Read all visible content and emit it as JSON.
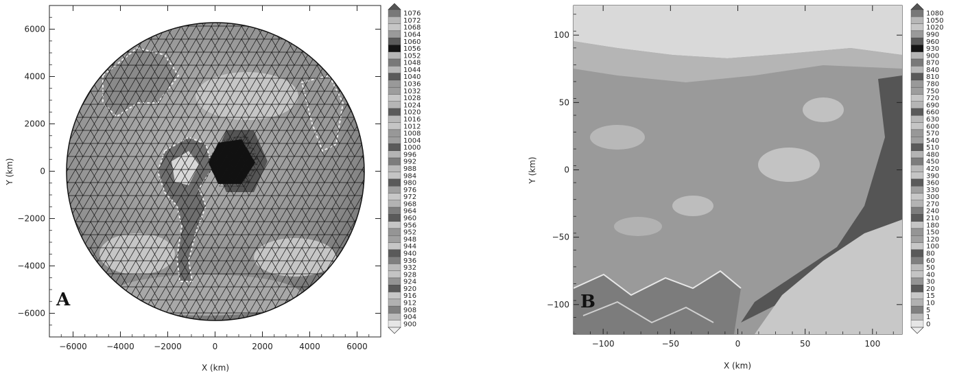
{
  "chart_data": [
    {
      "type": "heatmap",
      "panel_label": "A",
      "xlabel": "X (km)",
      "ylabel": "Y (km)",
      "xlim": [
        -7000,
        7000
      ],
      "ylim": [
        -7000,
        7000
      ],
      "x_ticks": [
        -6000,
        -4000,
        -2000,
        0,
        2000,
        4000,
        6000
      ],
      "y_ticks": [
        6000,
        4000,
        2000,
        0,
        -2000,
        -4000,
        -6000
      ],
      "colorbar_levels": [
        1076,
        1072,
        1068,
        1064,
        1060,
        1056,
        1052,
        1048,
        1044,
        1040,
        1036,
        1032,
        1028,
        1024,
        1020,
        1016,
        1012,
        1008,
        1004,
        1000,
        996,
        992,
        988,
        984,
        980,
        976,
        972,
        968,
        964,
        960,
        956,
        952,
        948,
        944,
        940,
        936,
        932,
        928,
        924,
        920,
        916,
        912,
        908,
        904,
        900
      ],
      "domain_radius": 6300
    },
    {
      "type": "heatmap",
      "panel_label": "B",
      "xlabel": "X (km)",
      "ylabel": "Y (km)",
      "xlim": [
        -122,
        122
      ],
      "ylim": [
        -122,
        122
      ],
      "x_ticks": [
        -100,
        -50,
        0,
        50,
        100
      ],
      "y_ticks": [
        100,
        50,
        0,
        -50,
        -100
      ],
      "colorbar_levels": [
        1080,
        1050,
        1020,
        990,
        960,
        930,
        900,
        870,
        840,
        810,
        780,
        750,
        720,
        690,
        660,
        630,
        600,
        570,
        540,
        510,
        480,
        450,
        420,
        390,
        360,
        330,
        300,
        270,
        240,
        210,
        180,
        150,
        120,
        100,
        80,
        60,
        50,
        40,
        30,
        20,
        15,
        10,
        5,
        1,
        0
      ]
    }
  ]
}
